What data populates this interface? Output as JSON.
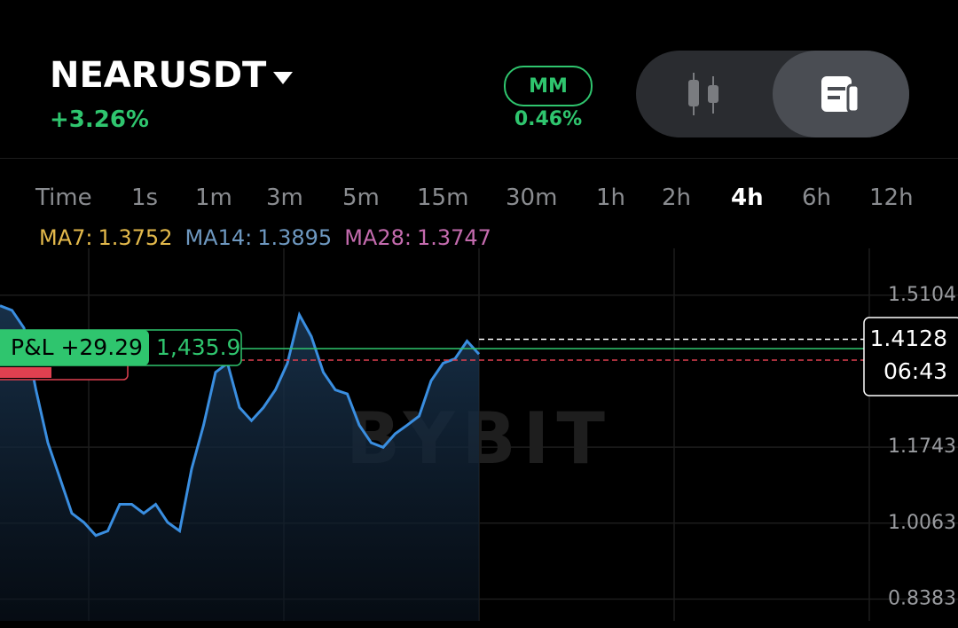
{
  "header": {
    "symbol": "NEARUSDT",
    "change": "+3.26%",
    "badge": "MM",
    "badge_value": "0.46%"
  },
  "tabs": [
    "Time",
    "1s",
    "1m",
    "3m",
    "5m",
    "15m",
    "30m",
    "1h",
    "2h",
    "4h",
    "6h",
    "12h"
  ],
  "active_tab": "4h",
  "indicators": [
    {
      "name": "MA7:",
      "value": "1.3752",
      "color": "#e3b94b"
    },
    {
      "name": "MA14:",
      "value": "1.3895",
      "color": "#6e98c0"
    },
    {
      "name": "MA28:",
      "value": "1.3747",
      "color": "#c46bae"
    }
  ],
  "position": {
    "pnl": "P&L +29.29",
    "size": "1,435.9"
  },
  "watermark": "BYBIT",
  "chart_data": {
    "type": "line",
    "values": [
      1.487,
      1.477,
      1.438,
      1.301,
      1.184,
      1.106,
      1.028,
      1.008,
      0.979,
      0.989,
      1.048,
      1.048,
      1.028,
      1.048,
      1.008,
      0.989,
      1.126,
      1.223,
      1.34,
      1.36,
      1.262,
      1.233,
      1.262,
      1.301,
      1.36,
      1.467,
      1.419,
      1.34,
      1.301,
      1.292,
      1.223,
      1.184,
      1.174,
      1.204,
      1.223,
      1.243,
      1.321,
      1.36,
      1.37,
      1.409,
      1.38
    ],
    "color": "#3a8ee0",
    "ylim": [
      0.79,
      1.614
    ],
    "yticks": [
      0.8383,
      1.0063,
      1.1743,
      1.5104
    ],
    "grid": true,
    "last_price": 1.4128,
    "countdown": "06:43"
  }
}
